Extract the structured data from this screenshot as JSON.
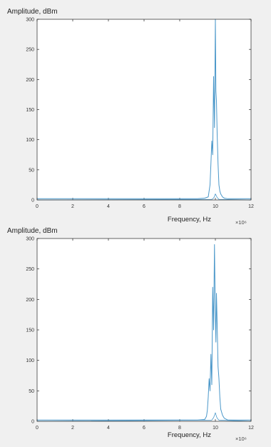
{
  "colors": {
    "background": "#f0f0f0",
    "plot_background": "#ffffff",
    "axis": "#262626",
    "series": "#4a97c9"
  },
  "chart_data": [
    {
      "type": "line",
      "ylabel": "Amplitude, dBm",
      "xlabel": "Frequency, Hz",
      "x_exponent": "×10⁶",
      "xlim": [
        0,
        12
      ],
      "ylim": [
        0,
        300
      ],
      "xticks": [
        0,
        2,
        4,
        6,
        8,
        10,
        12
      ],
      "yticks": [
        0,
        50,
        100,
        150,
        200,
        250,
        300
      ],
      "grid": false,
      "series": [
        {
          "x": [
            0,
            9.0,
            9.4,
            9.6,
            9.65,
            9.7,
            9.75,
            9.8,
            9.85,
            9.9,
            9.95,
            10.0,
            10.03,
            10.06,
            10.1,
            10.15,
            10.2,
            10.25,
            10.3,
            10.4,
            10.5,
            10.7,
            12
          ],
          "values": [
            2,
            2,
            3,
            5,
            15,
            25,
            60,
            98,
            75,
            205,
            120,
            300,
            180,
            165,
            110,
            60,
            25,
            15,
            10,
            5,
            3,
            2,
            2
          ]
        },
        {
          "x": [
            0,
            9.8,
            9.9,
            9.95,
            10.0,
            10.05,
            10.1,
            10.2,
            12
          ],
          "values": [
            0,
            1,
            3,
            6,
            10,
            7,
            4,
            1,
            0
          ]
        }
      ]
    },
    {
      "type": "line",
      "ylabel": "Amplitude, dBm",
      "xlabel": "Frequency, Hz",
      "x_exponent": "×10⁶",
      "xlim": [
        0,
        12
      ],
      "ylim": [
        0,
        300
      ],
      "xticks": [
        0,
        2,
        4,
        6,
        8,
        10,
        12
      ],
      "yticks": [
        0,
        50,
        100,
        150,
        200,
        250,
        300
      ],
      "grid": false,
      "series": [
        {
          "x": [
            0,
            9.0,
            9.4,
            9.5,
            9.55,
            9.6,
            9.65,
            9.7,
            9.75,
            9.8,
            9.85,
            9.9,
            9.95,
            10.0,
            10.03,
            10.06,
            10.1,
            10.15,
            10.2,
            10.25,
            10.3,
            10.4,
            10.5,
            10.7,
            12
          ],
          "values": [
            2,
            2,
            3,
            8,
            18,
            40,
            70,
            50,
            110,
            60,
            220,
            150,
            290,
            170,
            130,
            210,
            160,
            90,
            70,
            40,
            20,
            10,
            5,
            2,
            2
          ]
        },
        {
          "x": [
            0,
            9.8,
            9.9,
            9.95,
            10.0,
            10.05,
            10.1,
            10.2,
            12
          ],
          "values": [
            0,
            2,
            6,
            10,
            14,
            9,
            5,
            2,
            0
          ]
        }
      ]
    }
  ]
}
